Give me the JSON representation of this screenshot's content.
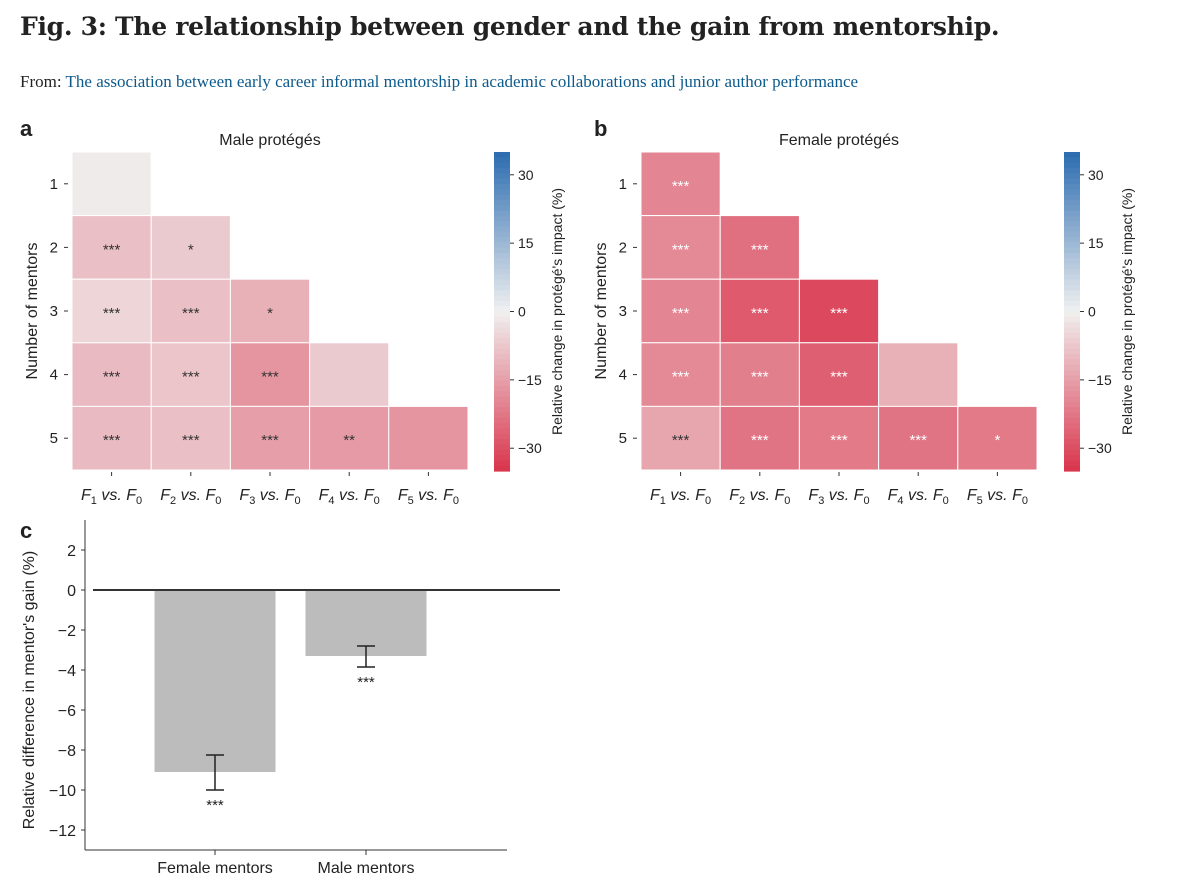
{
  "header": {
    "title": "Fig. 3: The relationship between gender and the gain from mentorship.",
    "from_label": "From:",
    "from_link": "The association between early career informal mentorship in academic collaborations and junior author performance"
  },
  "chart_data": [
    {
      "panel": "a",
      "type": "heatmap",
      "title": "Male protégés",
      "ylabel": "Number of mentors",
      "rows": [
        "1",
        "2",
        "3",
        "4",
        "5"
      ],
      "columns": [
        "F1 vs. F0",
        "F2 vs. F0",
        "F3 vs. F0",
        "F4 vs. F0",
        "F5 vs. F0"
      ],
      "values": [
        [
          -1
        ],
        [
          -9,
          -7
        ],
        [
          -5,
          -9,
          -12
        ],
        [
          -10,
          -8,
          -17,
          -7
        ],
        [
          -10,
          -9,
          -15,
          -16,
          -17
        ]
      ],
      "significance": [
        [
          ""
        ],
        [
          "***",
          "*"
        ],
        [
          "***",
          "***",
          "*"
        ],
        [
          "***",
          "***",
          "***",
          ""
        ],
        [
          "***",
          "***",
          "***",
          "**",
          ""
        ]
      ],
      "colorbar": {
        "label": "Relative change in protégé's impact (%)",
        "ticks": [
          30,
          15,
          0,
          -15,
          -30
        ],
        "range": [
          -35,
          35
        ],
        "low_color": "#d9344b",
        "mid_color": "#f0f0f0",
        "high_color": "#2b6cb0"
      }
    },
    {
      "panel": "b",
      "type": "heatmap",
      "title": "Female protégés",
      "ylabel": "Number of mentors",
      "rows": [
        "1",
        "2",
        "3",
        "4",
        "5"
      ],
      "columns": [
        "F1 vs. F0",
        "F2 vs. F0",
        "F3 vs. F0",
        "F4 vs. F0",
        "F5 vs. F0"
      ],
      "values": [
        [
          -20
        ],
        [
          -19,
          -24
        ],
        [
          -20,
          -28,
          -31
        ],
        [
          -19,
          -21,
          -27,
          -12
        ],
        [
          -14,
          -23,
          -22,
          -23,
          -22
        ]
      ],
      "significance": [
        [
          "***"
        ],
        [
          "***",
          "***"
        ],
        [
          "***",
          "***",
          "***"
        ],
        [
          "***",
          "***",
          "***",
          ""
        ],
        [
          "***",
          "***",
          "***",
          "***",
          "*"
        ]
      ],
      "colorbar": {
        "label": "Relative change in protégé's impact (%)",
        "ticks": [
          30,
          15,
          0,
          -15,
          -30
        ],
        "range": [
          -35,
          35
        ],
        "low_color": "#d9344b",
        "mid_color": "#f0f0f0",
        "high_color": "#2b6cb0"
      }
    },
    {
      "panel": "c",
      "type": "bar",
      "ylabel": "Relative difference in mentor's gain (%)",
      "categories": [
        "Female mentors",
        "Male mentors"
      ],
      "values": [
        -9.1,
        -3.3
      ],
      "error_low": [
        -10.0,
        -3.85
      ],
      "error_high": [
        -8.25,
        -2.8
      ],
      "significance": [
        "***",
        "***"
      ],
      "yticks": [
        2,
        0,
        -2,
        -4,
        -6,
        -8,
        -10,
        -12
      ],
      "ylim": [
        -13,
        3
      ],
      "bar_color": "#bbbcbb"
    }
  ]
}
